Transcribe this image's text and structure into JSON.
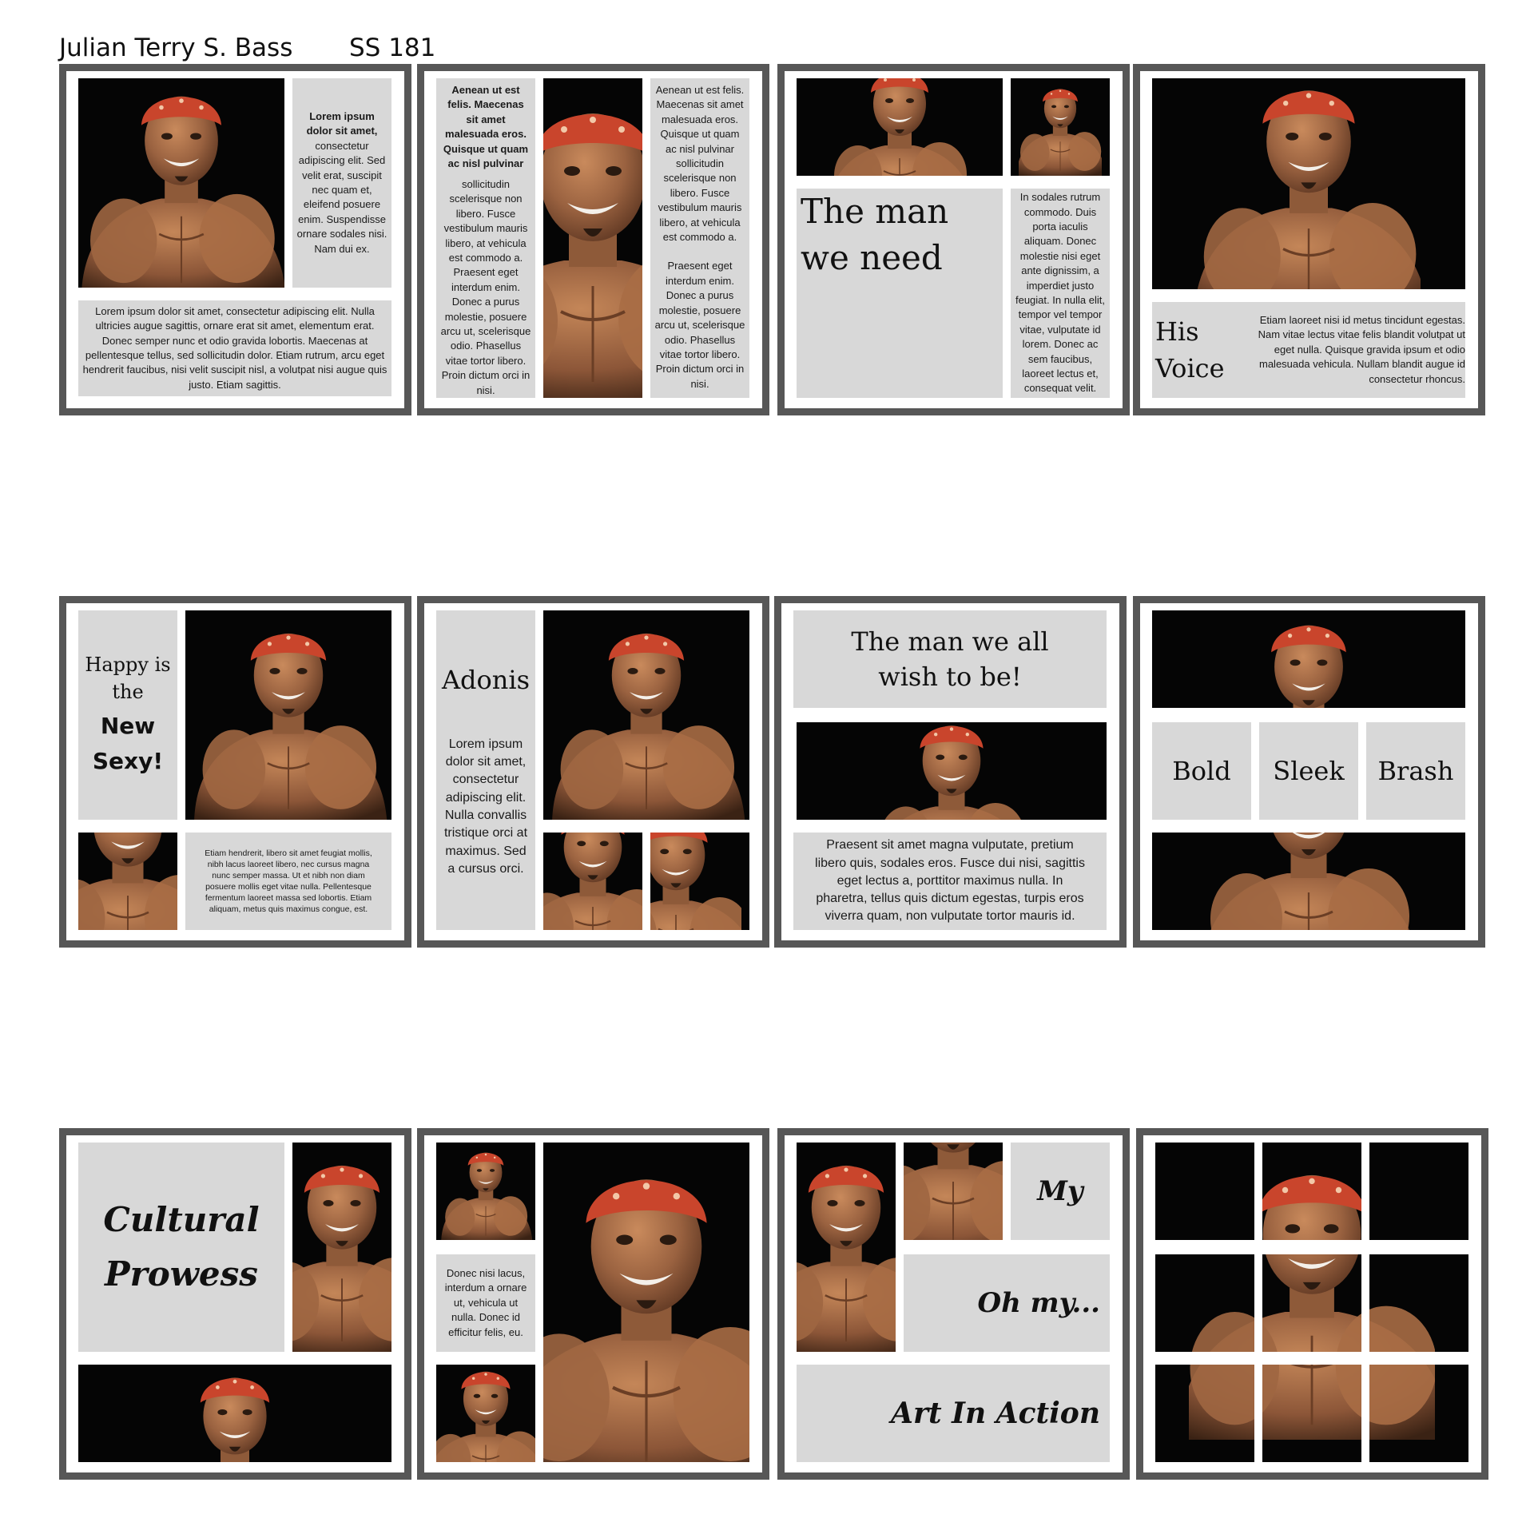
{
  "header": {
    "name": "Julian Terry S. Bass",
    "course": "SS 181"
  },
  "colors": {
    "frame": "#575757",
    "panel": "#d8d8d8",
    "photo_bg": "#050505",
    "bandana": "#c9452c",
    "skin": "#a46c47"
  },
  "cards": {
    "c1": {
      "side_bold": "Lorem ipsum dolor sit amet,",
      "side_text": "consectetur adipiscing elit. Sed velit erat, suscipit nec quam et, eleifend posuere enim. Suspendisse ornare sodales nisi. Nam dui ex.",
      "bottom_text": "Lorem ipsum dolor sit amet, consectetur adipiscing elit. Nulla ultricies augue sagittis, ornare erat sit amet, elementum erat. Donec semper nunc et odio gravida lobortis. Maecenas at pellentesque tellus, sed sollicitudin dolor. Etiam rutrum, arcu eget hendrerit faucibus, nisi velit suscipit nisl, a volutpat nisi augue quis justo. Etiam sagittis."
    },
    "c2": {
      "left_bold": "Aenean ut est felis. Maecenas sit amet malesuada eros. Quisque ut quam ac nisl pulvinar",
      "left_text": "sollicitudin scelerisque non libero. Fusce vestibulum mauris libero, at vehicula est commodo a. Praesent eget interdum enim. Donec a purus molestie, posuere arcu ut, scelerisque odio. Phasellus vitae tortor libero. Proin dictum orci in nisi.",
      "right_text1": "Aenean ut est felis. Maecenas sit amet malesuada eros. Quisque ut quam ac nisl pulvinar sollicitudin scelerisque non libero. Fusce vestibulum mauris libero, at vehicula est commodo a.",
      "right_text2": "Praesent eget interdum enim. Donec a purus molestie, posuere arcu ut, scelerisque odio. Phasellus vitae tortor libero. Proin dictum orci in nisi."
    },
    "c3": {
      "heading_line1": "The man",
      "heading_line2": "we need",
      "side_text": "In sodales rutrum commodo. Duis porta iaculis aliquam. Donec molestie nisi eget ante dignissim, a imperdiet justo feugiat. In nulla elit, tempor vel tempor vitae, vulputate id lorem. Donec ac sem faucibus, laoreet lectus et, consequat velit."
    },
    "c4": {
      "heading_line1": "His",
      "heading_line2": "Voice",
      "text": "Etiam laoreet nisi id metus tincidunt egestas. Nam vitae lectus vitae felis blandit volutpat ut eget nulla. Quisque gravida ipsum et odio malesuada vehicula. Nullam blandit augue id consectetur rhoncus."
    },
    "c5": {
      "heading_line1": "Happy is",
      "heading_line2": "the",
      "bold_line1": "New",
      "bold_line2": "Sexy!",
      "text": "Etiam hendrerit, libero sit amet feugiat mollis, nibh lacus laoreet libero, nec cursus magna nunc semper massa. Ut et nibh non diam posuere mollis eget vitae nulla. Pellentesque fermentum laoreet massa sed lobortis. Etiam aliquam, metus quis maximus congue, est."
    },
    "c6": {
      "heading": "Adonis",
      "text": "Lorem ipsum dolor sit amet, consectetur adipiscing elit. Nulla convallis tristique orci at maximus. Sed a cursus orci."
    },
    "c7": {
      "heading_line1": "The man we all",
      "heading_line2": "wish to be!",
      "text": "Praesent sit amet magna vulputate, pretium libero quis, sodales eros. Fusce dui nisi, sagittis eget lectus a, porttitor maximus nulla. In pharetra, tellus quis dictum egestas, turpis eros viverra quam, non vulputate tortor mauris id."
    },
    "c8": {
      "word1": "Bold",
      "word2": "Sleek",
      "word3": "Brash"
    },
    "c9": {
      "heading_line1": "Cultural",
      "heading_line2": "Prowess"
    },
    "c10": {
      "text": "Donec nisi lacus, interdum a ornare ut, vehicula ut nulla. Donec id efficitur felis, eu."
    },
    "c11": {
      "word1": "My",
      "word2": "Oh my...",
      "word3": "Art In Action"
    }
  }
}
